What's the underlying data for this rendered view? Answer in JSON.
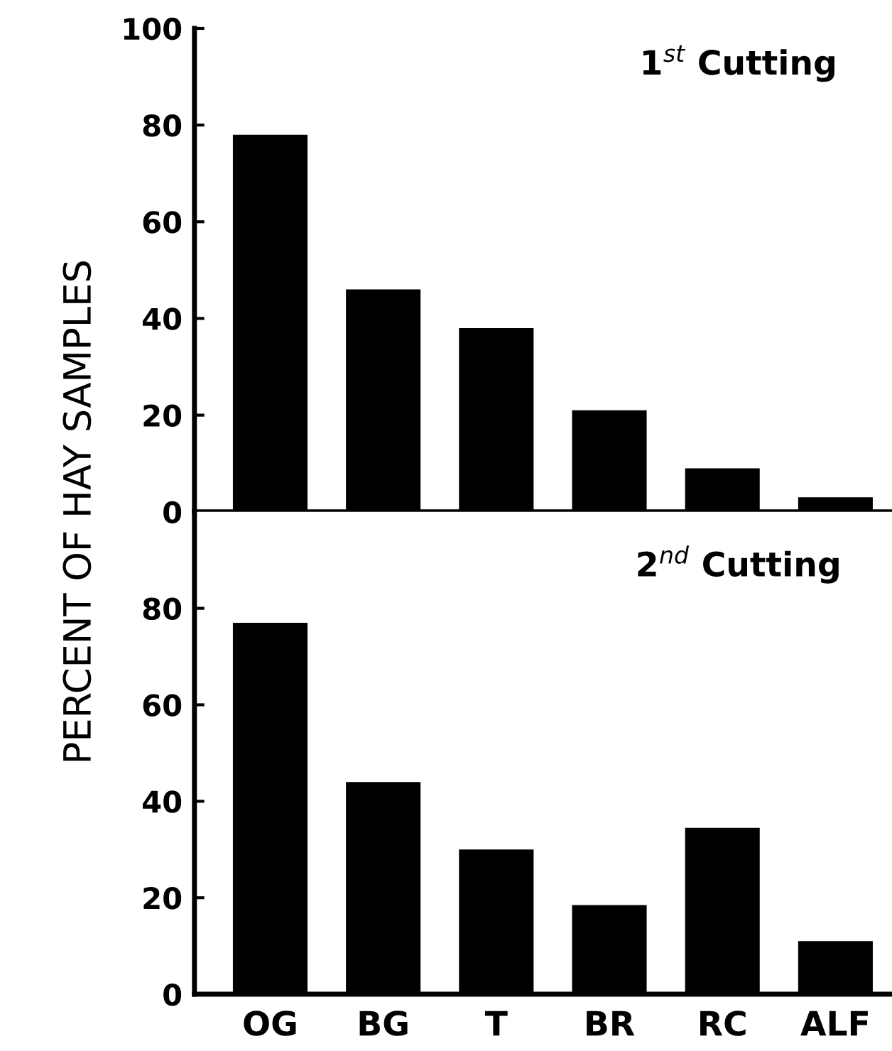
{
  "chart_data": [
    {
      "type": "bar",
      "title": "1$^{st}$ Cutting",
      "ylabel": "PERCENT OF HAY SAMPLES",
      "categories": [
        null,
        null,
        null,
        null,
        null,
        null
      ],
      "values": [
        78,
        46,
        38,
        21,
        9,
        3
      ],
      "color": "#000000",
      "ylim": [
        0,
        100
      ],
      "yticks": [
        0,
        20,
        40,
        60,
        80,
        100
      ],
      "tick_labels": "y"
    },
    {
      "type": "bar",
      "title": "2$^{nd}$ Cutting",
      "categories": [
        "OG",
        "BG",
        "T",
        "BR",
        "RC",
        "ALF"
      ],
      "values": [
        77,
        44,
        30,
        18.5,
        34.5,
        11
      ],
      "color": "#000000",
      "ylim": [
        0,
        100
      ],
      "yticks": [
        0,
        20,
        40,
        60,
        80
      ]
    }
  ]
}
